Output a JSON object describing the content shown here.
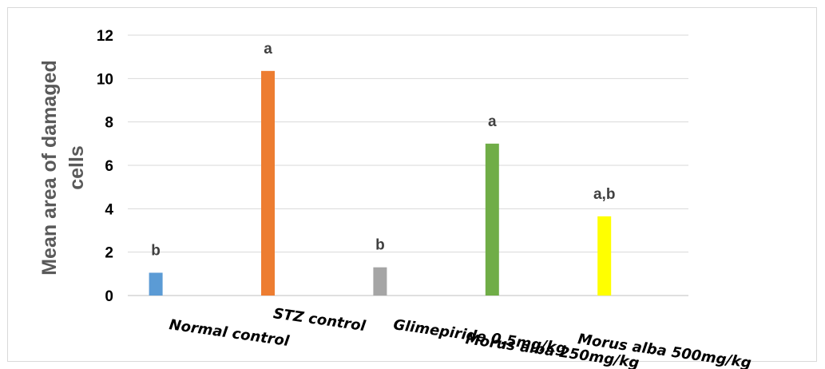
{
  "chart_data": {
    "type": "bar",
    "title": "",
    "xlabel": "",
    "ylabel": "Mean area of damaged cells",
    "ylabel_lines": [
      "Mean area of damaged",
      "cells"
    ],
    "ylim": [
      0,
      12
    ],
    "yticks": [
      "0",
      "2",
      "4",
      "6",
      "8",
      "10",
      "12"
    ],
    "grid": true,
    "legend": "none",
    "categories": [
      "Normal control",
      "STZ control",
      "Glimepiride 0.5mg/kg",
      "Morus alba 250mg/kg",
      "Morus alba 500mg/kg"
    ],
    "values": [
      1.05,
      10.35,
      1.3,
      7.0,
      3.65
    ],
    "data_labels": [
      "b",
      "a",
      "b",
      "a",
      "a,b"
    ],
    "colors": [
      "#5b9bd5",
      "#ed7d31",
      "#a5a5a5",
      "#70ad47",
      "#ffff00"
    ]
  }
}
